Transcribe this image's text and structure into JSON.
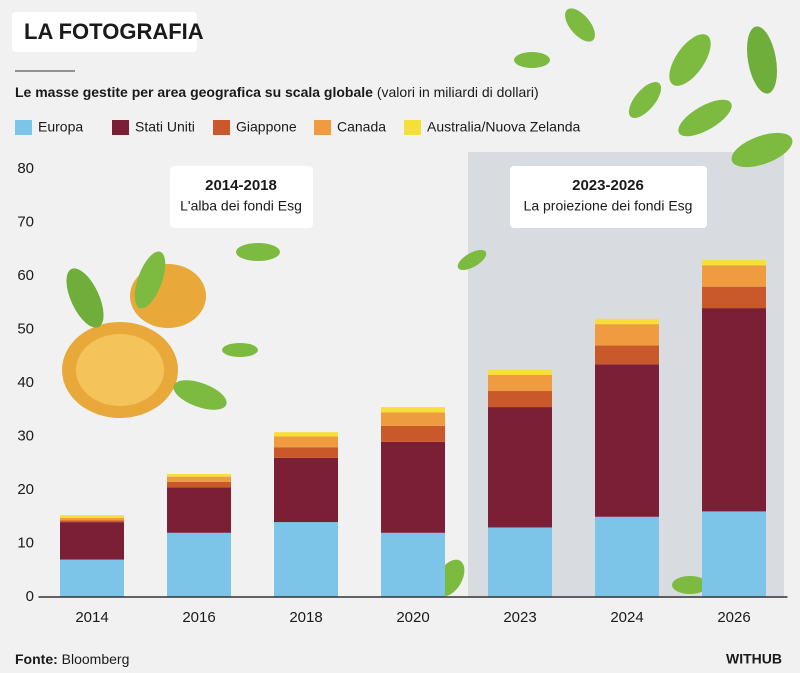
{
  "chart_data": {
    "type": "stacked_bar",
    "title": "LA FOTOGRAFIA",
    "subtitle": "Le masse gestite per area geografica su scala globale",
    "subtitle_note": "(valori in miliardi di dollari)",
    "categories": [
      "2014",
      "2016",
      "2018",
      "2020",
      "2023",
      "2024",
      "2026"
    ],
    "series": [
      {
        "name": "Europa",
        "color": "#7cc4e8",
        "values": [
          7,
          12,
          14,
          12,
          13,
          15,
          16
        ]
      },
      {
        "name": "Stati Uniti",
        "color": "#7a1f35",
        "values": [
          7,
          8.5,
          12,
          17,
          22.5,
          28.5,
          38
        ]
      },
      {
        "name": "Giappone",
        "color": "#c9582b",
        "values": [
          0.3,
          1,
          2,
          3,
          3,
          3.5,
          4
        ]
      },
      {
        "name": "Canada",
        "color": "#ee9c3f",
        "values": [
          0.5,
          1,
          2,
          2.5,
          3,
          4,
          4
        ]
      },
      {
        "name": "Australia/Nuova Zelanda",
        "color": "#f7df3a",
        "values": [
          0.5,
          0.5,
          0.8,
          1,
          1,
          1,
          1
        ]
      }
    ],
    "ylim": [
      0,
      80
    ],
    "yticks": [
      0,
      10,
      20,
      30,
      40,
      50,
      60,
      70,
      80
    ],
    "grid": false,
    "annotations": [
      {
        "title": "2014-2018",
        "text": "L'alba dei fondi Esg"
      },
      {
        "title": "2023-2026",
        "text": "La proiezione dei fondi Esg"
      }
    ],
    "source_label": "Fonte:",
    "source": "Bloomberg",
    "credit": "WITHUB"
  }
}
